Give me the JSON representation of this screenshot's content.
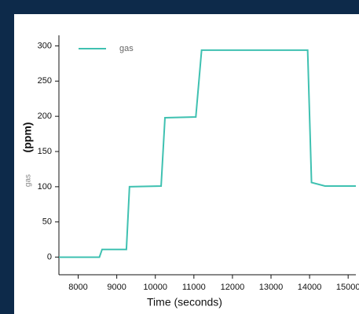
{
  "chart_data": {
    "type": "line",
    "y_label_name": "gas",
    "y_label_unit": "(ppm)",
    "x_label": "Time (seconds)",
    "x": [
      7500,
      8550,
      8620,
      9250,
      9330,
      10150,
      10250,
      11050,
      11200,
      13950,
      14050,
      14400,
      15200
    ],
    "series": [
      {
        "name": "gas",
        "color": "#3fc1b1",
        "values": [
          0,
          0,
          11,
          11,
          100,
          101,
          198,
          199,
          294,
          294,
          106,
          101,
          101
        ]
      }
    ],
    "xlim": [
      7500,
      15200
    ],
    "xticks": [
      8000,
      9000,
      10000,
      11000,
      12000,
      13000,
      14000,
      15000
    ],
    "ylim": [
      -25,
      315
    ],
    "yticks": [
      0,
      50,
      100,
      150,
      200,
      250,
      300
    ],
    "legend": "top-left"
  }
}
